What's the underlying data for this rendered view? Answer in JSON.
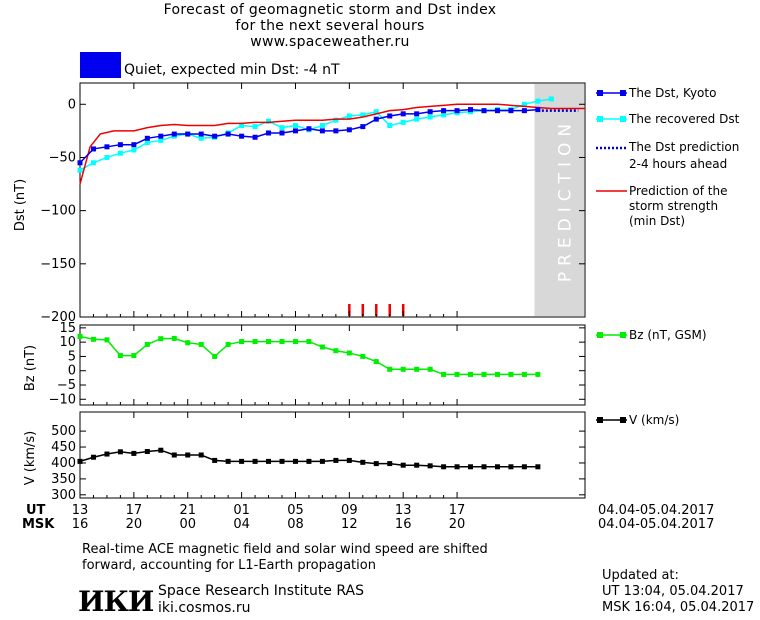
{
  "header": {
    "title_lines": [
      "Forecast of geomagnetic storm and Dst index",
      "for the next several hours",
      "www.spaceweather.ru"
    ],
    "status_text": "Quiet, expected min Dst: -4 nT",
    "status_color": "#0000ee"
  },
  "legend": {
    "dst_kyoto": "The Dst, Kyoto",
    "dst_recovered": "The recovered Dst",
    "dst_prediction_line1": "The Dst prediction",
    "dst_prediction_line2": "2-4 hours ahead",
    "storm_line1": "Prediction of the",
    "storm_line2": "storm strength",
    "storm_line3": "(min Dst)",
    "bz": "Bz (nT, GSM)",
    "v": "V (km/s)"
  },
  "prediction_label": "PREDICTION",
  "time_axis": {
    "ut_label": "UT",
    "msk_label": "MSK",
    "ut_ticks": [
      "13",
      "17",
      "21",
      "01",
      "05",
      "09",
      "13",
      "17"
    ],
    "msk_ticks": [
      "16",
      "20",
      "00",
      "04",
      "08",
      "12",
      "16",
      "20"
    ],
    "ut_range": "04.04-05.04.2017",
    "msk_range": "04.04-05.04.2017"
  },
  "footer": {
    "note_line1": "Real-time ACE magnetic field and solar wind speed are shifted",
    "note_line2": "forward, accounting for L1-Earth propagation",
    "institute": "Space Research Institute RAS",
    "site": "iki.cosmos.ru",
    "logo_text": "ИКИ",
    "updated_label": "Updated at:",
    "updated_ut": "UT   13:04, 05.04.2017",
    "updated_msk": "MSK 16:04, 05.04.2017"
  },
  "chart_data": [
    {
      "type": "line",
      "panel": "Dst",
      "ylabel": "Dst (nT)",
      "ylim": [
        -200,
        20
      ],
      "yticks": [
        0,
        -50,
        -100,
        -150,
        -200
      ],
      "xlim_hours": [
        13,
        50.5
      ],
      "prediction_start_hour": 46.75,
      "colors": {
        "kyoto": "#0000ee",
        "recovered": "#00ffff",
        "prediction": "#0000cc",
        "storm": "#ee0000",
        "storm_ticks": "#ee0000",
        "shade": "#d8d8d8"
      },
      "series": [
        {
          "name": "The Dst, Kyoto",
          "x": [
            13,
            14,
            15,
            16,
            17,
            18,
            19,
            20,
            21,
            22,
            23,
            24,
            25,
            26,
            27,
            28,
            29,
            30,
            31,
            32,
            33,
            34,
            35,
            36,
            37,
            38,
            39,
            40,
            41,
            42,
            43,
            44,
            45,
            46,
            47
          ],
          "values": [
            -55,
            -42,
            -40,
            -38,
            -38,
            -32,
            -30,
            -28,
            -28,
            -28,
            -30,
            -28,
            -30,
            -31,
            -27,
            -27,
            -25,
            -23,
            -25,
            -25,
            -24,
            -21,
            -14,
            -11,
            -9,
            -9,
            -7,
            -6,
            -6,
            -5,
            -6,
            -6,
            -6,
            -6,
            -5
          ]
        },
        {
          "name": "The recovered Dst",
          "x": [
            13,
            14,
            15,
            16,
            17,
            18,
            19,
            20,
            21,
            22,
            23,
            24,
            25,
            26,
            27,
            28,
            29,
            30,
            31,
            32,
            33,
            34,
            35,
            36,
            37,
            38,
            39,
            40,
            41,
            42,
            43,
            44,
            45,
            46,
            47,
            48
          ],
          "values": [
            -62,
            -55,
            -50,
            -46,
            -43,
            -36,
            -34,
            -30,
            -28,
            -32,
            -31,
            -27,
            -20,
            -21,
            -16,
            -22,
            -20,
            -24,
            -20,
            -15,
            -11,
            -10,
            -7,
            -20,
            -17,
            -14,
            -12,
            -10,
            -8,
            -7,
            -6,
            -5,
            -5,
            0,
            3,
            5
          ]
        },
        {
          "name": "The Dst prediction 2-4 hours ahead",
          "x": [
            47,
            47.75,
            48.5,
            49.25,
            50
          ],
          "values": [
            -6,
            -6,
            -6,
            -6,
            -6
          ]
        },
        {
          "name": "Prediction of the storm strength (min Dst)",
          "x": [
            13,
            13.75,
            14.5,
            15.5,
            16,
            17,
            18,
            19,
            20,
            21,
            22,
            23,
            24,
            25,
            26,
            27,
            28,
            29,
            30,
            31,
            32,
            33,
            34,
            35,
            36,
            37,
            38,
            39,
            40,
            41,
            42,
            43,
            44,
            45,
            46,
            47,
            48,
            49,
            50.5
          ],
          "values": [
            -75,
            -40,
            -28,
            -25,
            -25,
            -25,
            -22,
            -20,
            -19,
            -20,
            -20,
            -20,
            -18,
            -18,
            -17,
            -17,
            -16,
            -15,
            -15,
            -15,
            -14,
            -14,
            -12,
            -9,
            -6,
            -5,
            -3,
            -2,
            -1,
            0,
            0,
            0,
            0,
            -1,
            -2,
            -3,
            -4,
            -4,
            -4
          ]
        }
      ],
      "storm_ticks_hours": [
        33,
        34,
        35,
        36,
        37
      ]
    },
    {
      "type": "line",
      "panel": "Bz",
      "ylabel": "Bz (nT)",
      "ylim": [
        -12,
        16
      ],
      "yticks": [
        15,
        10,
        5,
        0,
        -5,
        -10
      ],
      "color": "#00ee00",
      "series": [
        {
          "name": "Bz (nT, GSM)",
          "x": [
            13,
            14,
            15,
            16,
            17,
            18,
            19,
            20,
            21,
            22,
            23,
            24,
            25,
            26,
            27,
            28,
            29,
            30,
            31,
            32,
            33,
            34,
            35,
            36,
            37,
            38,
            39,
            40,
            41,
            42,
            43,
            44,
            45,
            46,
            47
          ],
          "values": [
            12,
            11,
            10.8,
            5.3,
            5.3,
            9.2,
            11.2,
            11.3,
            9.8,
            9.2,
            5,
            9.2,
            10.2,
            10.2,
            10.2,
            10.2,
            10.2,
            10.2,
            8.3,
            7,
            6.2,
            5,
            3.2,
            0.5,
            0.5,
            0.5,
            0.5,
            -1.3,
            -1.3,
            -1.3,
            -1.3,
            -1.3,
            -1.3,
            -1.3,
            -1.3
          ]
        }
      ]
    },
    {
      "type": "line",
      "panel": "V",
      "ylabel": "V (km/s)",
      "ylim": [
        290,
        560
      ],
      "yticks": [
        500,
        450,
        400,
        350,
        300
      ],
      "color": "#000000",
      "series": [
        {
          "name": "V (km/s)",
          "x": [
            13,
            14,
            15,
            16,
            17,
            18,
            19,
            20,
            21,
            22,
            23,
            24,
            25,
            26,
            27,
            28,
            29,
            30,
            31,
            32,
            33,
            34,
            35,
            36,
            37,
            38,
            39,
            40,
            41,
            42,
            43,
            44,
            45,
            46,
            47
          ],
          "values": [
            405,
            418,
            428,
            435,
            430,
            436,
            440,
            425,
            425,
            425,
            408,
            405,
            405,
            405,
            405,
            405,
            405,
            405,
            405,
            408,
            408,
            402,
            398,
            398,
            393,
            393,
            391,
            388,
            388,
            388,
            388,
            388,
            388,
            388,
            388
          ]
        }
      ]
    }
  ]
}
